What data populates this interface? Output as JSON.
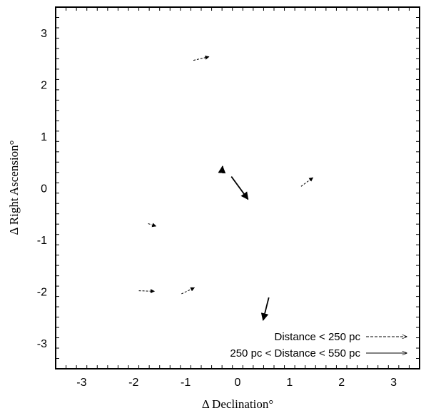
{
  "chart_data": {
    "type": "vector-field",
    "xlabel": "Δ Declination°",
    "ylabel": "Δ Right Ascension°",
    "xlim": [
      -3.5,
      3.5
    ],
    "ylim": [
      -3.5,
      3.5
    ],
    "xticks": [
      -3,
      -2,
      -1,
      0,
      1,
      2,
      3
    ],
    "yticks": [
      -3,
      -2,
      -1,
      0,
      1,
      2,
      3
    ],
    "minor_ticks_step": 0.2,
    "grid": false,
    "legend_position": "bottom-right",
    "series": [
      {
        "name": "Distance < 250 pc",
        "style": "dashed",
        "color": "#000000",
        "vectors": [
          {
            "x0": -0.85,
            "y0": 2.47,
            "x1": -0.55,
            "y1": 2.54
          },
          {
            "x0": 1.22,
            "y0": 0.03,
            "x1": 1.45,
            "y1": 0.2
          },
          {
            "x0": -1.72,
            "y0": -0.69,
            "x1": -1.57,
            "y1": -0.74
          },
          {
            "x0": -1.9,
            "y0": -1.99,
            "x1": -1.6,
            "y1": -2.0
          },
          {
            "x0": -1.08,
            "y0": -2.05,
            "x1": -0.83,
            "y1": -1.93
          }
        ]
      },
      {
        "name": "250 pc < Distance < 550 pc",
        "style": "solid",
        "color": "#000000",
        "vectors": [
          {
            "x0": -0.3,
            "y0": 0.32,
            "x1": -0.29,
            "y1": 0.42
          },
          {
            "x0": -0.12,
            "y0": 0.22,
            "x1": 0.2,
            "y1": -0.22
          },
          {
            "x0": 0.6,
            "y0": -2.12,
            "x1": 0.49,
            "y1": -2.56
          }
        ]
      }
    ]
  }
}
